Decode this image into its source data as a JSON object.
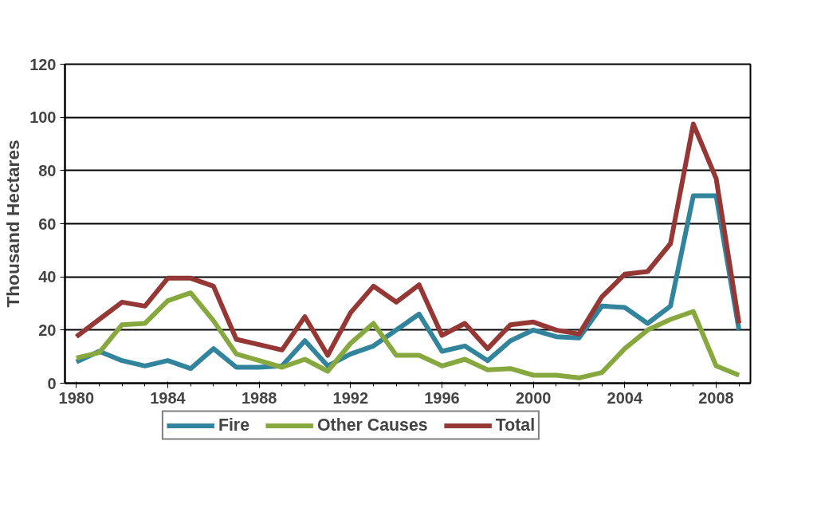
{
  "chart_data": {
    "type": "line",
    "ylabel": "Thousand Hectares",
    "x": [
      1980,
      1981,
      1982,
      1983,
      1984,
      1985,
      1986,
      1987,
      1988,
      1989,
      1990,
      1991,
      1992,
      1993,
      1994,
      1995,
      1996,
      1997,
      1998,
      1999,
      2000,
      2001,
      2002,
      2003,
      2004,
      2005,
      2006,
      2007,
      2008,
      2009
    ],
    "series": [
      {
        "name": "Fire",
        "color": "#31849b",
        "values": [
          8,
          12,
          8.5,
          6.5,
          8.5,
          5.5,
          13,
          6,
          6,
          6.5,
          16,
          6.5,
          11,
          14,
          20,
          26,
          12,
          14,
          8.5,
          16,
          20,
          17.5,
          17,
          29,
          28.5,
          22.5,
          29,
          70.5,
          70.5,
          20
        ]
      },
      {
        "name": "Other Causes",
        "color": "#86a83e",
        "values": [
          9.5,
          11.5,
          22,
          22.5,
          31,
          34,
          23.5,
          11,
          8.5,
          6,
          9,
          4.5,
          15,
          22.5,
          10.5,
          10.5,
          6.5,
          9,
          5,
          5.5,
          3,
          3,
          2,
          4,
          13,
          20,
          24,
          27,
          6.5,
          3
        ]
      },
      {
        "name": "Total",
        "color": "#953735",
        "values": [
          17.5,
          24,
          30.5,
          29,
          39.5,
          39.5,
          36.5,
          16.5,
          14.5,
          12.5,
          25,
          10.5,
          26.5,
          36.5,
          30.5,
          37,
          18,
          22.5,
          13,
          22,
          23,
          20,
          18.5,
          32.5,
          41,
          42,
          52.5,
          97.5,
          77,
          22.5
        ]
      }
    ],
    "xlim": [
      1979.5,
      2009.5
    ],
    "xticks": [
      1980,
      1984,
      1988,
      1992,
      1996,
      2000,
      2004,
      2008
    ],
    "ylim": [
      0,
      120
    ],
    "yticks": [
      0,
      20,
      40,
      60,
      80,
      100,
      120
    ],
    "grid": "y",
    "legend": "bottom",
    "marker": "none",
    "line_style": "solid"
  }
}
